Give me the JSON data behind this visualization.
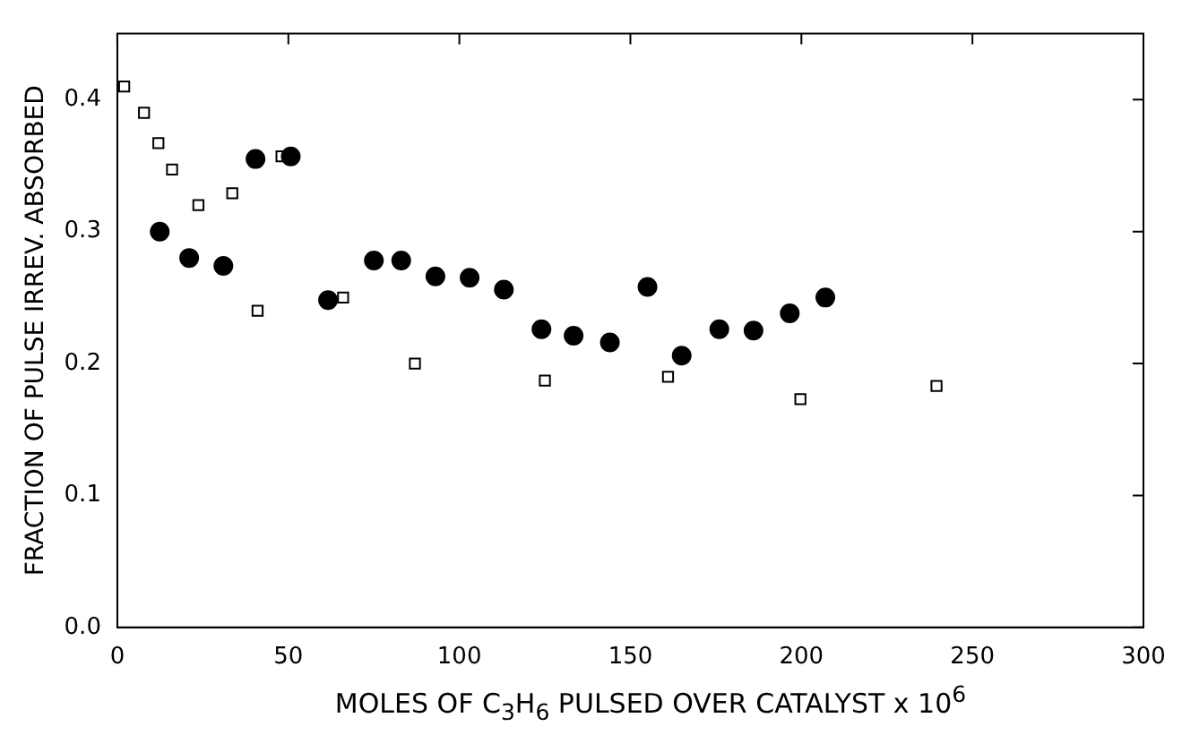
{
  "chart_data": {
    "type": "scatter",
    "xlabel": "MOLES OF C$_{3}$H$_{6}$ PULSED OVER CATALYST x 10$^{6}$",
    "ylabel": "FRACTION OF PULSE IRREV. ABSORBED",
    "xlim": [
      0,
      300
    ],
    "xticks": [
      0,
      50,
      100,
      150,
      200,
      250,
      300
    ],
    "ylim": [
      0,
      0.45
    ],
    "yticks": [
      {
        "value": 0,
        "label": "0.0"
      },
      0.1,
      0.2,
      0.3,
      0.4
    ],
    "grid": false,
    "legend": false,
    "series": [
      {
        "color": "#000000",
        "marker": "square",
        "x": [
          2,
          7.8,
          12,
          16,
          23.7,
          33.6,
          41,
          48,
          66,
          87,
          125,
          161,
          199.7,
          239.5
        ],
        "values": [
          0.41,
          0.39,
          0.367,
          0.347,
          0.32,
          0.329,
          0.24,
          0.357,
          0.25,
          0.2,
          0.187,
          0.19,
          0.173,
          0.183
        ]
      },
      {
        "color": "#000000",
        "marker": "circle",
        "x": [
          12.4,
          21,
          31,
          40.4,
          50.7,
          61.6,
          75,
          83,
          93,
          103,
          113,
          124,
          133.4,
          144,
          155,
          165,
          176,
          186,
          196.6,
          207
        ],
        "values": [
          0.3,
          0.28,
          0.274,
          0.355,
          0.357,
          0.248,
          0.278,
          0.278,
          0.266,
          0.265,
          0.256,
          0.226,
          0.221,
          0.216,
          0.258,
          0.206,
          0.226,
          0.225,
          0.238,
          0.25
        ]
      }
    ]
  }
}
